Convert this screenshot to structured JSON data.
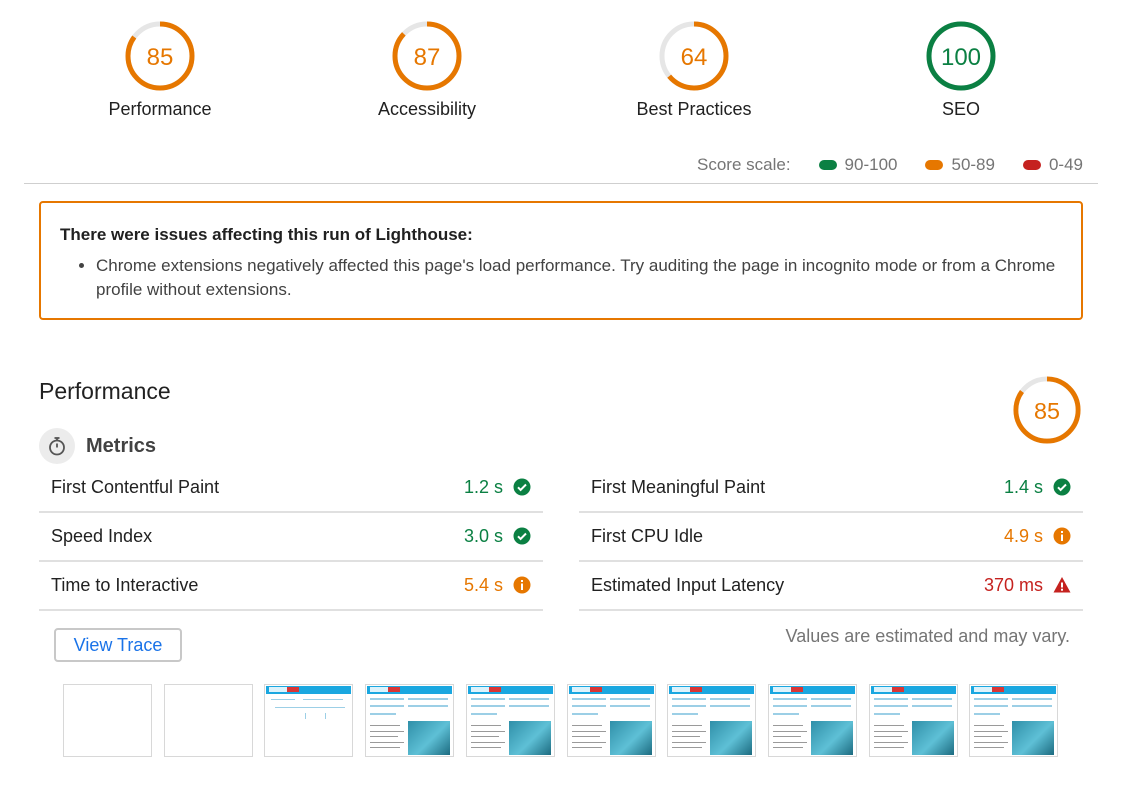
{
  "scores": [
    {
      "label": "Performance",
      "value": 85,
      "color": "#e67700"
    },
    {
      "label": "Accessibility",
      "value": 87,
      "color": "#e67700"
    },
    {
      "label": "Best Practices",
      "value": 64,
      "color": "#e67700"
    },
    {
      "label": "SEO",
      "value": 100,
      "color": "#0b8043"
    }
  ],
  "score_scale": {
    "label": "Score scale:",
    "ranges": [
      {
        "label": "90-100",
        "color": "#0b8043"
      },
      {
        "label": "50-89",
        "color": "#e67700"
      },
      {
        "label": "0-49",
        "color": "#c5221f"
      }
    ]
  },
  "warning": {
    "title": "There were issues affecting this run of Lighthouse:",
    "items": [
      "Chrome extensions negatively affected this page's load performance. Try auditing the page in incognito mode or from a Chrome profile without extensions."
    ]
  },
  "performance": {
    "title": "Performance",
    "score": 85,
    "metrics_title": "Metrics",
    "metrics_icon": "stopwatch-icon",
    "metrics": [
      {
        "name": "First Contentful Paint",
        "value": "1.2 s",
        "status": "pass"
      },
      {
        "name": "First Meaningful Paint",
        "value": "1.4 s",
        "status": "pass"
      },
      {
        "name": "Speed Index",
        "value": "3.0 s",
        "status": "pass"
      },
      {
        "name": "First CPU Idle",
        "value": "4.9 s",
        "status": "average"
      },
      {
        "name": "Time to Interactive",
        "value": "5.4 s",
        "status": "average"
      },
      {
        "name": "Estimated Input Latency",
        "value": "370 ms",
        "status": "fail"
      }
    ],
    "view_trace_label": "View Trace",
    "estimated_note": "Values are estimated and may vary."
  },
  "filmstrip": {
    "frames": [
      "blank",
      "blank",
      "partial",
      "full",
      "full",
      "full",
      "full",
      "full",
      "full",
      "full"
    ]
  }
}
